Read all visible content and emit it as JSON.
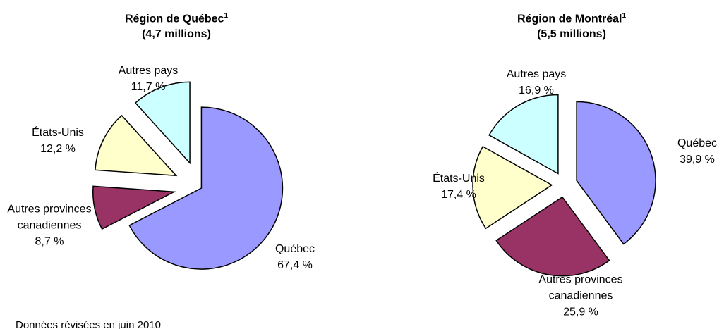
{
  "chart_data": [
    {
      "type": "pie",
      "title": "Région de Québec",
      "title_note": "1",
      "subtitle": "(4,7 millions)",
      "categories": [
        "Québec",
        "Autres provinces canadiennes",
        "États-Unis",
        "Autres pays"
      ],
      "values": [
        67.4,
        8.7,
        12.2,
        11.7
      ],
      "value_labels": [
        "67,4 %",
        "8,7 %",
        "12,2 %",
        "11,7 %"
      ],
      "colors": [
        "#9999ff",
        "#993366",
        "#ffffcc",
        "#ccffff"
      ]
    },
    {
      "type": "pie",
      "title": "Région de Montréal",
      "title_note": "1",
      "subtitle": "(5,5 millions)",
      "categories": [
        "Québec",
        "Autres provinces canadiennes",
        "États-Unis",
        "Autres pays"
      ],
      "values": [
        39.9,
        25.9,
        17.4,
        16.9
      ],
      "value_labels": [
        "39,9 %",
        "25,9 %",
        "17,4 %",
        "16,9 %"
      ],
      "colors": [
        "#9999ff",
        "#993366",
        "#ffffcc",
        "#ccffff"
      ]
    }
  ],
  "note": "Données révisées en juin 2010"
}
